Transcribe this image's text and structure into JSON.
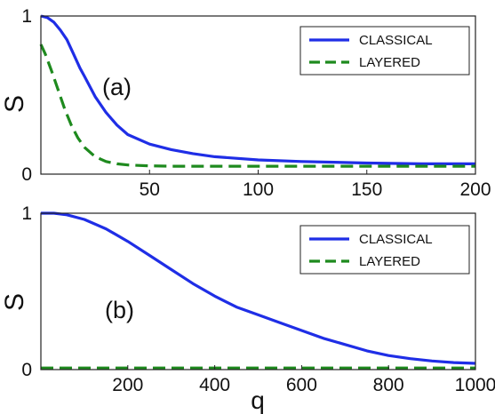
{
  "chart_data": [
    {
      "type": "line",
      "panel_label": "(a)",
      "ylabel": "S",
      "xlabel": "",
      "xlim": [
        0,
        200
      ],
      "ylim": [
        0,
        1
      ],
      "xticks": [
        50,
        100,
        150,
        200
      ],
      "yticks": [
        0,
        1
      ],
      "legend_position": "top-right",
      "series": [
        {
          "name": "CLASSICAL",
          "color": "#1f2ee6",
          "style": "solid",
          "x": [
            0,
            3,
            6,
            9,
            12,
            15,
            18,
            20,
            25,
            30,
            35,
            40,
            50,
            60,
            70,
            80,
            100,
            120,
            150,
            175,
            200
          ],
          "y": [
            1.0,
            0.99,
            0.96,
            0.91,
            0.85,
            0.76,
            0.67,
            0.62,
            0.49,
            0.39,
            0.31,
            0.25,
            0.19,
            0.155,
            0.13,
            0.11,
            0.09,
            0.08,
            0.07,
            0.065,
            0.065
          ]
        },
        {
          "name": "LAYERED",
          "color": "#1e8a1e",
          "style": "dashed",
          "x": [
            0,
            2,
            5,
            8,
            11,
            14,
            17,
            20,
            25,
            30,
            35,
            40,
            50,
            60,
            80,
            100,
            150,
            200
          ],
          "y": [
            0.82,
            0.76,
            0.65,
            0.53,
            0.41,
            0.31,
            0.23,
            0.17,
            0.11,
            0.08,
            0.065,
            0.058,
            0.052,
            0.05,
            0.05,
            0.05,
            0.05,
            0.05
          ]
        }
      ]
    },
    {
      "type": "line",
      "panel_label": "(b)",
      "ylabel": "S",
      "xlabel": "q",
      "xlim": [
        0,
        1000
      ],
      "ylim": [
        0,
        1
      ],
      "xticks": [
        200,
        400,
        600,
        800,
        1000
      ],
      "yticks": [
        0,
        1
      ],
      "legend_position": "top-right",
      "series": [
        {
          "name": "CLASSICAL",
          "color": "#1f2ee6",
          "style": "solid",
          "x": [
            0,
            30,
            60,
            100,
            150,
            200,
            250,
            300,
            350,
            400,
            450,
            500,
            550,
            600,
            650,
            700,
            750,
            800,
            850,
            900,
            950,
            1000
          ],
          "y": [
            1.0,
            1.0,
            0.99,
            0.96,
            0.9,
            0.82,
            0.73,
            0.64,
            0.55,
            0.47,
            0.4,
            0.35,
            0.3,
            0.25,
            0.2,
            0.16,
            0.12,
            0.09,
            0.07,
            0.055,
            0.045,
            0.04
          ]
        },
        {
          "name": "LAYERED",
          "color": "#1e8a1e",
          "style": "dashed",
          "x": [
            0,
            1000
          ],
          "y": [
            0.01,
            0.01
          ]
        }
      ]
    }
  ]
}
